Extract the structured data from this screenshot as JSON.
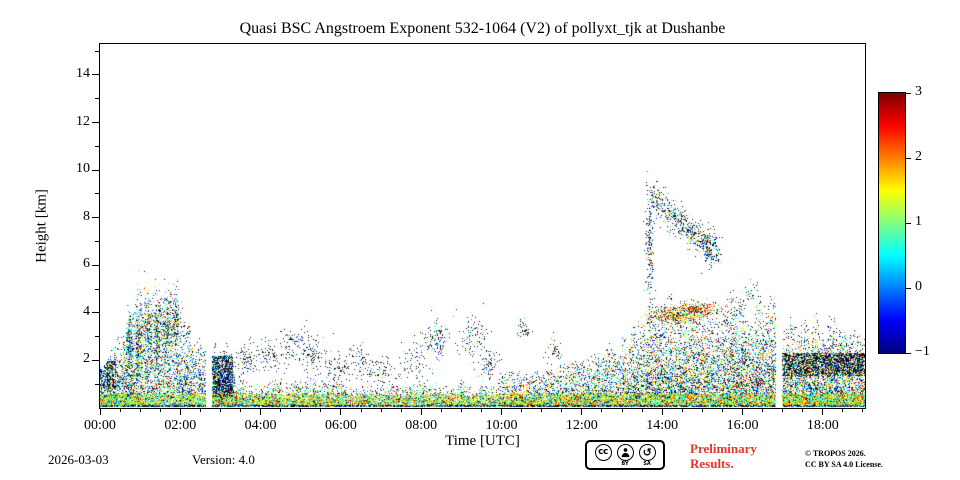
{
  "colors": {
    "preliminary_red": "#e8352a",
    "plot_background": "#ffffff",
    "axis": "#000000"
  },
  "chart_data": {
    "type": "heatmap",
    "title": "Quasi BSC Angstroem Exponent 532-1064 (V2) of pollyxt_tjk at Dushanbe",
    "xlabel": "Time [UTC]",
    "ylabel": "Height [km]",
    "xlim": [
      0,
      19.05
    ],
    "ylim": [
      0,
      15.3
    ],
    "clim": [
      -1,
      3
    ],
    "colormap": "jet",
    "colorbar_ticks": [
      3,
      2,
      1,
      0,
      -1
    ],
    "x_major_ticks": [
      0,
      2,
      4,
      6,
      8,
      10,
      12,
      14,
      16,
      18
    ],
    "x_tick_labels": [
      "00:00",
      "02:00",
      "04:00",
      "06:00",
      "08:00",
      "10:00",
      "12:00",
      "14:00",
      "16:00",
      "18:00"
    ],
    "x_minor_step": 0.5,
    "y_major_ticks": [
      2,
      4,
      6,
      8,
      10,
      12,
      14
    ],
    "y_minor_step": 1,
    "grid": false,
    "legend": "colorbar-right",
    "seed": 7,
    "no_data_gaps": [
      [
        2.62,
        2.78
      ],
      [
        16.82,
        16.97
      ]
    ],
    "render": {
      "ground_band": {
        "h": 0.14,
        "d": 0.9,
        "black": 0.45,
        "vm": 0.2
      },
      "bright_band": [
        0.14,
        0.6
      ]
    },
    "boundary_layer": [
      {
        "t0": 0.0,
        "t1": 0.35,
        "top0": 1.9,
        "top1": 2.3,
        "d": 0.8,
        "vm": 0.5,
        "b": 0.3
      },
      {
        "t0": 0.35,
        "t1": 1.05,
        "top0": 2.3,
        "top1": 3.8,
        "d": 0.62,
        "vm": 0.9,
        "b": 0.16
      },
      {
        "t0": 1.05,
        "t1": 1.95,
        "top0": 3.9,
        "top1": 4.2,
        "d": 0.5,
        "vm": 0.85,
        "b": 0.2
      },
      {
        "t0": 1.95,
        "t1": 2.62,
        "top0": 3.5,
        "top1": 2.6,
        "d": 0.55,
        "vm": 0.7,
        "b": 0.25
      },
      {
        "t0": 2.78,
        "t1": 3.35,
        "top0": 2.4,
        "top1": 2.1,
        "d": 0.75,
        "vm": 0.3,
        "b": 0.45
      },
      {
        "t0": 3.35,
        "t1": 5.5,
        "top0": 1.15,
        "top1": 1.0,
        "d": 0.7,
        "vm": 1.0,
        "b": 0.13
      },
      {
        "t0": 5.5,
        "t1": 9.9,
        "top0": 0.95,
        "top1": 0.95,
        "d": 0.65,
        "vm": 1.0,
        "b": 0.13
      },
      {
        "t0": 9.9,
        "t1": 12.3,
        "top0": 1.2,
        "top1": 1.8,
        "d": 0.65,
        "vm": 1.0,
        "b": 0.14
      },
      {
        "t0": 12.3,
        "t1": 13.6,
        "top0": 2.0,
        "top1": 3.4,
        "d": 0.6,
        "vm": 0.9,
        "b": 0.18
      },
      {
        "t0": 13.6,
        "t1": 15.0,
        "top0": 3.7,
        "top1": 4.4,
        "d": 0.6,
        "vm": 0.9,
        "b": 0.24
      },
      {
        "t0": 15.0,
        "t1": 16.82,
        "top0": 4.4,
        "top1": 3.9,
        "d": 0.6,
        "vm": 0.9,
        "b": 0.24
      },
      {
        "t0": 16.97,
        "t1": 19.05,
        "top0": 3.1,
        "top1": 3.3,
        "d": 0.65,
        "vm": 0.9,
        "b": 0.26
      }
    ],
    "black_bands": [
      {
        "t0": 16.97,
        "t1": 19.05,
        "h0": 1.35,
        "h1": 2.35,
        "d": 0.8,
        "black": 0.6
      },
      {
        "t0": 0.0,
        "t1": 0.38,
        "h0": 0.8,
        "h1": 2.0,
        "d": 0.75,
        "black": 0.5
      },
      {
        "t0": 2.78,
        "t1": 3.3,
        "h0": 0.5,
        "h1": 2.2,
        "d": 0.8,
        "black": 0.5
      }
    ],
    "clusters": [
      {
        "t": 0.72,
        "h": 2.7,
        "st": 0.05,
        "sh": 0.75,
        "n": 320,
        "black": 0.22,
        "vm": 0.8
      },
      {
        "t": 0.95,
        "h": 3.0,
        "st": 0.05,
        "sh": 0.8,
        "n": 300,
        "black": 0.25,
        "vm": 0.9
      },
      {
        "t": 1.18,
        "h": 3.2,
        "st": 0.06,
        "sh": 0.8,
        "n": 300,
        "black": 0.28,
        "vm": 0.8
      },
      {
        "t": 1.42,
        "h": 3.1,
        "st": 0.05,
        "sh": 0.8,
        "n": 280,
        "black": 0.3,
        "vm": 0.9
      },
      {
        "t": 1.65,
        "h": 3.4,
        "st": 0.06,
        "sh": 0.7,
        "n": 260,
        "black": 0.32,
        "vm": 0.8
      },
      {
        "t": 1.88,
        "h": 3.6,
        "st": 0.05,
        "sh": 0.6,
        "n": 200,
        "black": 0.35,
        "vm": 0.7
      },
      {
        "t": 3.6,
        "h": 2.0,
        "st": 0.12,
        "sh": 0.3,
        "n": 90,
        "black": 0.7,
        "vm": 0.3
      },
      {
        "t": 4.15,
        "h": 2.3,
        "st": 0.18,
        "sh": 0.35,
        "n": 85,
        "black": 0.7,
        "vm": 0.2
      },
      {
        "t": 4.85,
        "h": 2.7,
        "st": 0.22,
        "sh": 0.4,
        "n": 100,
        "black": 0.65,
        "vm": 0.3
      },
      {
        "t": 5.3,
        "h": 2.2,
        "st": 0.18,
        "sh": 0.4,
        "n": 90,
        "black": 0.7,
        "vm": 0.3
      },
      {
        "t": 5.9,
        "h": 1.7,
        "st": 0.18,
        "sh": 0.35,
        "n": 80,
        "black": 0.7,
        "vm": 0.2
      },
      {
        "t": 6.5,
        "h": 1.9,
        "st": 0.2,
        "sh": 0.4,
        "n": 85,
        "black": 0.7,
        "vm": 0.2
      },
      {
        "t": 7.1,
        "h": 1.6,
        "st": 0.18,
        "sh": 0.35,
        "n": 70,
        "black": 0.7,
        "vm": 0.3
      },
      {
        "t": 7.9,
        "h": 2.1,
        "st": 0.22,
        "sh": 0.5,
        "n": 90,
        "black": 0.7,
        "vm": 0.2
      },
      {
        "t": 8.4,
        "h": 2.95,
        "st": 0.13,
        "sh": 0.4,
        "n": 120,
        "black": 0.6,
        "vm": 0.3
      },
      {
        "t": 9.3,
        "h": 2.9,
        "st": 0.18,
        "sh": 0.55,
        "n": 110,
        "black": 0.65,
        "vm": 0.3
      },
      {
        "t": 9.7,
        "h": 1.8,
        "st": 0.13,
        "sh": 0.35,
        "n": 70,
        "black": 0.7,
        "vm": 0.3
      },
      {
        "t": 10.5,
        "h": 3.3,
        "st": 0.09,
        "sh": 0.25,
        "n": 45,
        "black": 0.7,
        "vm": 0.2
      },
      {
        "t": 11.3,
        "h": 2.4,
        "st": 0.13,
        "sh": 0.3,
        "n": 40,
        "black": 0.7,
        "vm": 0.2
      },
      {
        "t": 14.3,
        "h": 3.9,
        "st": 0.35,
        "sh": 0.18,
        "n": 420,
        "black": 0.12,
        "vm": 1.7
      },
      {
        "t": 14.9,
        "h": 4.15,
        "st": 0.28,
        "sh": 0.15,
        "n": 320,
        "black": 0.12,
        "vm": 1.9
      },
      {
        "t": 13.68,
        "h": 6.8,
        "st": 0.05,
        "sh": 1.3,
        "n": 210,
        "black": 0.45,
        "vm": 0.5
      },
      {
        "t": 15.15,
        "h": 6.9,
        "st": 0.1,
        "sh": 0.35,
        "n": 80,
        "black": 0.5,
        "vm": 0.6
      },
      {
        "t": 16.2,
        "h": 4.95,
        "st": 0.09,
        "sh": 0.25,
        "n": 30,
        "black": 0.6,
        "vm": 0.5
      }
    ],
    "arc": {
      "t0": 13.75,
      "t1": 15.35,
      "h0": 8.9,
      "h1": 6.4,
      "jt": 0.09,
      "jh": 0.3,
      "n": 650,
      "black": 0.45,
      "vm": 0.6
    }
  },
  "footer": {
    "date": "2026-03-03",
    "version": "Version: 4.0",
    "preliminary_line1": "Preliminary",
    "preliminary_line2": "Results.",
    "copyright": "© TROPOS 2026.",
    "license": "CC BY SA 4.0 License.",
    "badge": {
      "cc_label": "cc",
      "by_label": "BY",
      "sa_label": "SA",
      "sa_glyph": "↺"
    }
  }
}
